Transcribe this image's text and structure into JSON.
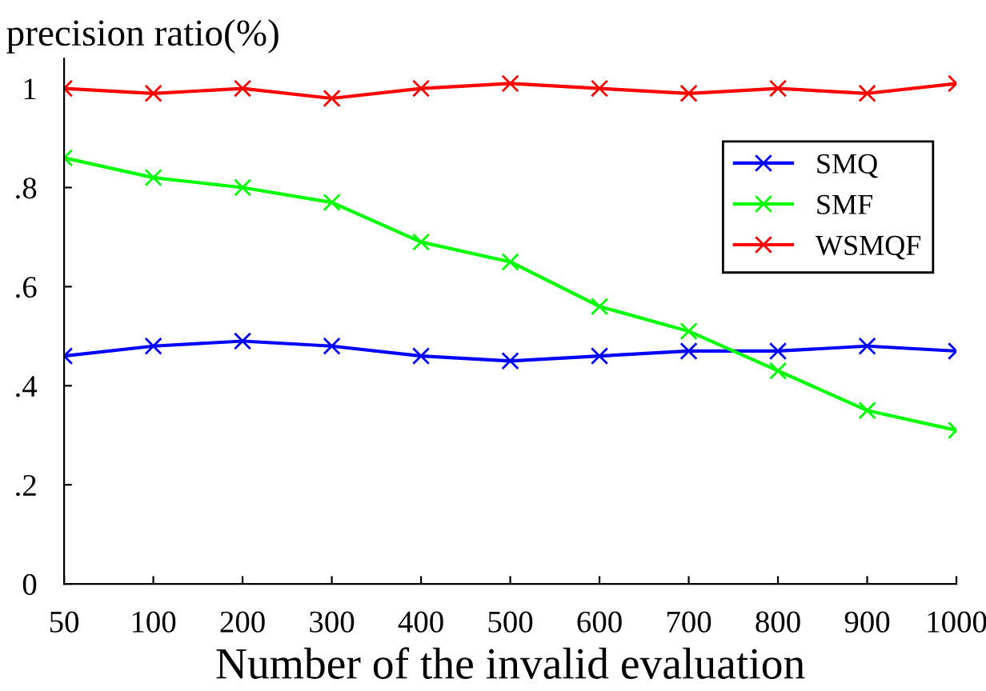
{
  "chart_data": {
    "type": "line",
    "ylabel": "precision ratio(%)",
    "xlabel": "Number of the invalid evaluation",
    "categories": [
      "50",
      "100",
      "200",
      "300",
      "400",
      "500",
      "600",
      "700",
      "800",
      "900",
      "1000"
    ],
    "series": [
      {
        "name": "SMQ",
        "color": "#0000ff",
        "marker": "cross",
        "values": [
          0.46,
          0.48,
          0.49,
          0.48,
          0.46,
          0.45,
          0.46,
          0.47,
          0.47,
          0.48,
          0.47
        ]
      },
      {
        "name": "SMF",
        "color": "#00ff00",
        "marker": "cross",
        "values": [
          0.86,
          0.82,
          0.8,
          0.77,
          0.69,
          0.65,
          0.56,
          0.51,
          0.43,
          0.35,
          0.31
        ]
      },
      {
        "name": "WSMQF",
        "color": "#ff0000",
        "marker": "cross",
        "values": [
          1.0,
          0.99,
          1.0,
          0.98,
          1.0,
          1.01,
          1.0,
          0.99,
          1.0,
          0.99,
          1.01
        ]
      }
    ],
    "ylim": [
      0,
      1.06
    ],
    "yticks": [
      0,
      {
        "value": 0.2,
        "label": ".2"
      },
      {
        "value": 0.4,
        "label": ".4"
      },
      {
        "value": 0.6,
        "label": ".6"
      },
      {
        "value": 0.8,
        "label": ".8"
      },
      1
    ],
    "grid": false,
    "legend": "top right",
    "line_style": "solid"
  }
}
